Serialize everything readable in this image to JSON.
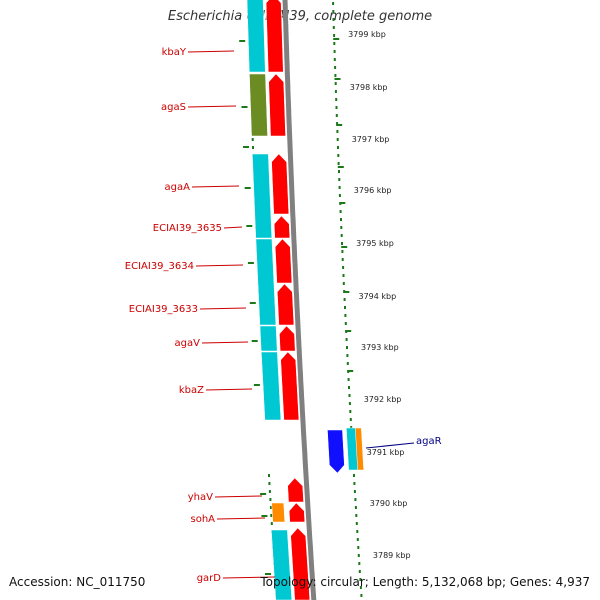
{
  "title": "Escherichia coli IAI39, complete genome",
  "footer": {
    "accession": "Accession: NC_011750",
    "summary": "Topology: circular; Length: 5,132,068 bp; Genes: 4,937"
  },
  "colors": {
    "backbone": "#808080",
    "tick": "#1a7a1a",
    "cds": "#ff0000",
    "cog_teal": "#00c8d2",
    "cog_olive": "#6b8c22",
    "cog_blue": "#1010ff",
    "cog_orange": "#ff8c00",
    "label_left": "#cc0000",
    "label_right": "#000080"
  },
  "gene_labels_left": [
    "kbaY",
    "agaS",
    "agaA",
    "ECIAI39_3635",
    "ECIAI39_3634",
    "ECIAI39_3633",
    "agaV",
    "kbaZ",
    "yhaV",
    "sohA",
    "garD"
  ],
  "gene_labels_right": [
    "agaR"
  ],
  "kbp_ticks": [
    "3799 kbp",
    "3798 kbp",
    "3797 kbp",
    "3796 kbp",
    "3795 kbp",
    "3794 kbp",
    "3793 kbp",
    "3792 kbp",
    "3791 kbp",
    "3790 kbp",
    "3789 kbp"
  ]
}
